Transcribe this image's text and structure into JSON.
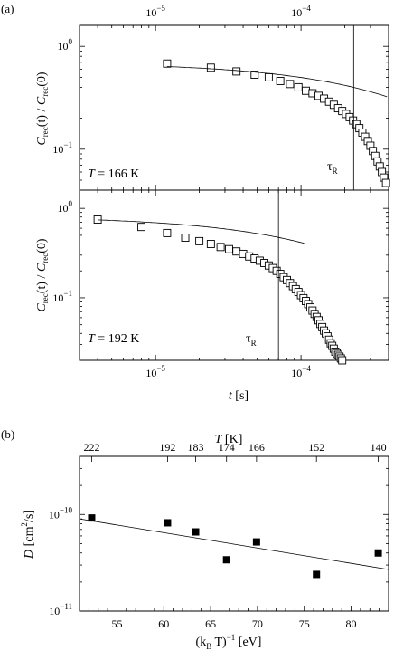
{
  "labels": {
    "panel_a": "(a)",
    "panel_b": "(b)"
  },
  "chart_data": [
    {
      "type": "scatter",
      "panel": "(a) top",
      "x_scale": "log",
      "y_scale": "log",
      "xlim": [
        3e-06,
        0.0004
      ],
      "ylim": [
        0.04,
        1.6
      ],
      "top_axis_ticks": [
        {
          "value": 1e-05,
          "mant": "10",
          "exp": "−5"
        },
        {
          "value": 0.0001,
          "mant": "10",
          "exp": "−4"
        }
      ],
      "y_ticks": [
        {
          "value": 1,
          "mant": "10",
          "exp": "0"
        },
        {
          "value": 0.1,
          "mant": "10",
          "exp": "−1"
        }
      ],
      "ylabel": {
        "a": "C",
        "b": "rec",
        "c": "(t) / ",
        "d": "C",
        "e": "rec",
        "f": "(0)"
      },
      "annotation_T": {
        "sym": "T",
        "rest": " = 166 K"
      },
      "tau_label": {
        "sym": "τ",
        "sub": "R"
      },
      "tau_x": 0.00023,
      "series": [
        {
          "marker": "open-square",
          "x": [
            1.2e-05,
            2.4e-05,
            3.6e-05,
            4.8e-05,
            6e-05,
            7.2e-05,
            8.4e-05,
            9.6e-05,
            0.000108,
            0.00012,
            0.000132,
            0.000144,
            0.000156,
            0.000168,
            0.00018,
            0.000192,
            0.000204,
            0.000216,
            0.000228,
            0.00024,
            0.000252,
            0.000264,
            0.000276,
            0.000288,
            0.0003,
            0.000312,
            0.000324,
            0.000336,
            0.000348,
            0.00036,
            0.000372,
            0.000384
          ],
          "y": [
            0.68,
            0.62,
            0.57,
            0.53,
            0.5,
            0.46,
            0.43,
            0.4,
            0.37,
            0.35,
            0.33,
            0.31,
            0.29,
            0.27,
            0.25,
            0.235,
            0.22,
            0.205,
            0.19,
            0.175,
            0.16,
            0.145,
            0.132,
            0.12,
            0.108,
            0.096,
            0.086,
            0.076,
            0.068,
            0.06,
            0.053,
            0.047
          ]
        }
      ],
      "fit_curve": {
        "x_start": 1.2e-05,
        "x_end": 0.00039,
        "y0": 0.7,
        "tau": 0.0006,
        "beta": 0.6
      }
    },
    {
      "type": "scatter",
      "panel": "(a) bottom",
      "x_scale": "log",
      "y_scale": "log",
      "xlim": [
        3e-06,
        0.0004
      ],
      "ylim": [
        0.02,
        1.6
      ],
      "x_ticks": [
        {
          "value": 1e-05,
          "mant": "10",
          "exp": "−5"
        },
        {
          "value": 0.0001,
          "mant": "10",
          "exp": "−4"
        }
      ],
      "y_ticks": [
        {
          "value": 1,
          "mant": "10",
          "exp": "0"
        },
        {
          "value": 0.1,
          "mant": "10",
          "exp": "−1"
        }
      ],
      "xlabel": {
        "sym": "t",
        "rest": " [s]"
      },
      "ylabel": {
        "a": "C",
        "b": "rec",
        "c": "(t) / ",
        "d": "C",
        "e": "rec",
        "f": "(0)"
      },
      "annotation_T": {
        "sym": "T",
        "rest": " = 192 K"
      },
      "tau_label": {
        "sym": "τ",
        "sub": "R"
      },
      "tau_x": 7e-05,
      "series": [
        {
          "marker": "open-square",
          "x": [
            4e-06,
            8e-06,
            1.2e-05,
            1.6e-05,
            2e-05,
            2.4e-05,
            2.8e-05,
            3.2e-05,
            3.6e-05,
            4e-05,
            4.4e-05,
            4.8e-05,
            5.2e-05,
            5.6e-05,
            6e-05,
            6.4e-05,
            6.8e-05,
            7.2e-05,
            7.6e-05,
            8e-05,
            8.4e-05,
            8.8e-05,
            9.2e-05,
            9.6e-05,
            0.0001,
            0.000104,
            0.000108,
            0.000112,
            0.000116,
            0.00012,
            0.000124,
            0.000128,
            0.000132,
            0.000136,
            0.00014,
            0.000144,
            0.000148,
            0.000152,
            0.000156,
            0.00016,
            0.000164,
            0.000168,
            0.000172,
            0.000176,
            0.00018,
            0.000184,
            0.000188,
            0.000192
          ],
          "y": [
            0.75,
            0.62,
            0.53,
            0.47,
            0.43,
            0.4,
            0.37,
            0.35,
            0.33,
            0.31,
            0.29,
            0.275,
            0.26,
            0.245,
            0.23,
            0.215,
            0.2,
            0.185,
            0.17,
            0.158,
            0.146,
            0.135,
            0.125,
            0.116,
            0.107,
            0.099,
            0.092,
            0.085,
            0.078,
            0.072,
            0.066,
            0.061,
            0.056,
            0.051,
            0.047,
            0.043,
            0.04,
            0.037,
            0.034,
            0.031,
            0.029,
            0.027,
            0.025,
            0.024,
            0.023,
            0.022,
            0.021,
            0.02
          ]
        }
      ],
      "fit_curve": {
        "x_start": 4e-06,
        "x_end": 0.000105,
        "y0": 0.82,
        "tau": 0.00019,
        "beta": 0.6
      }
    },
    {
      "type": "scatter",
      "panel": "(b)",
      "x_scale": "linear",
      "y_scale": "log",
      "xlim": [
        51,
        84
      ],
      "ylim": [
        1e-11,
        4e-10
      ],
      "x_ticks": [
        55,
        60,
        65,
        70,
        75,
        80
      ],
      "top_axis_label": {
        "sym": "T",
        "rest": " [K]"
      },
      "top_axis_ticks": [
        {
          "x": 52.3,
          "label": "222"
        },
        {
          "x": 60.4,
          "label": "192"
        },
        {
          "x": 63.4,
          "label": "183"
        },
        {
          "x": 66.7,
          "label": "174"
        },
        {
          "x": 69.9,
          "label": "166"
        },
        {
          "x": 76.3,
          "label": "152"
        },
        {
          "x": 82.9,
          "label": "140"
        }
      ],
      "y_ticks": [
        {
          "value": 1e-10,
          "mant": "10",
          "exp": "−10"
        },
        {
          "value": 1e-11,
          "mant": "10",
          "exp": "−11"
        }
      ],
      "xlabel": {
        "a": "(k",
        "b": "B",
        "c": " T)",
        "d": "−1",
        "e": " [eV]"
      },
      "ylabel": {
        "sym": "D",
        "a": " [cm",
        "b": "2",
        "c": "/s]"
      },
      "series": [
        {
          "marker": "filled-square",
          "x": [
            52.3,
            60.4,
            63.4,
            66.7,
            69.9,
            76.3,
            82.9
          ],
          "y": [
            9.2e-11,
            8.2e-11,
            6.6e-11,
            3.4e-11,
            5.2e-11,
            2.4e-11,
            4e-11
          ]
        }
      ],
      "fit_line": {
        "x": [
          51,
          84
        ],
        "y": [
          9e-11,
          2.7e-11
        ]
      }
    }
  ]
}
